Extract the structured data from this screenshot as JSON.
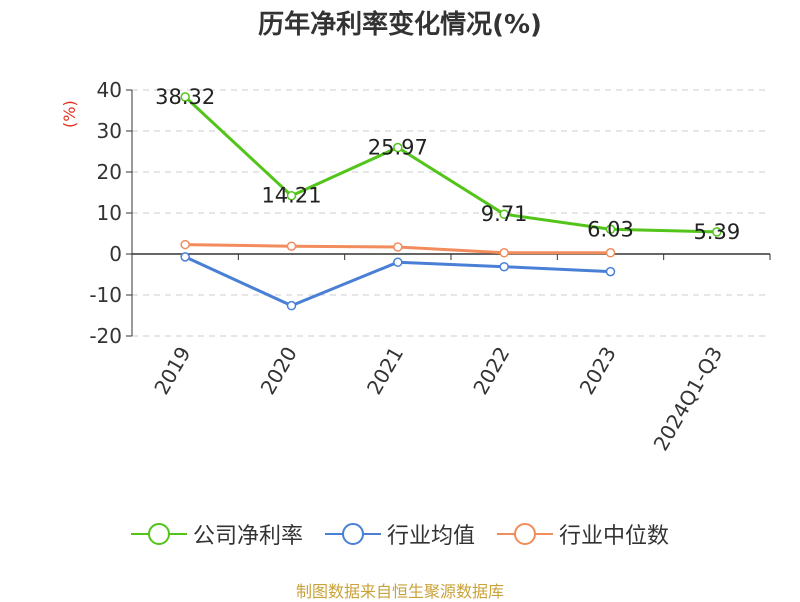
{
  "title": "历年净利率变化情况(%)",
  "source": "制图数据来自恒生聚源数据库",
  "chart_data": {
    "type": "line",
    "title": "历年净利率变化情况(%)",
    "ylabel": "(%)",
    "xlabel": "",
    "ylim": [
      -20,
      40
    ],
    "yticks": [
      40,
      30,
      20,
      10,
      0,
      -10,
      -20
    ],
    "categories": [
      "2019",
      "2020",
      "2021",
      "2022",
      "2023",
      "2024Q1-Q3"
    ],
    "grid": true,
    "legend_position": "bottom",
    "series": [
      {
        "name": "公司净利率",
        "color": "#52c41a",
        "values": [
          38.32,
          14.21,
          25.97,
          9.71,
          6.03,
          5.39
        ],
        "labels": [
          "38.32",
          "14.21",
          "25.97",
          "9.71",
          "6.03",
          "5.39"
        ]
      },
      {
        "name": "行业均值",
        "color": "#4a7fd6",
        "values": [
          -0.7,
          -12.6,
          -2.0,
          -3.1,
          -4.3,
          null
        ]
      },
      {
        "name": "行业中位数",
        "color": "#f28c5c",
        "values": [
          2.3,
          1.9,
          1.7,
          0.3,
          0.3,
          null
        ]
      }
    ]
  }
}
